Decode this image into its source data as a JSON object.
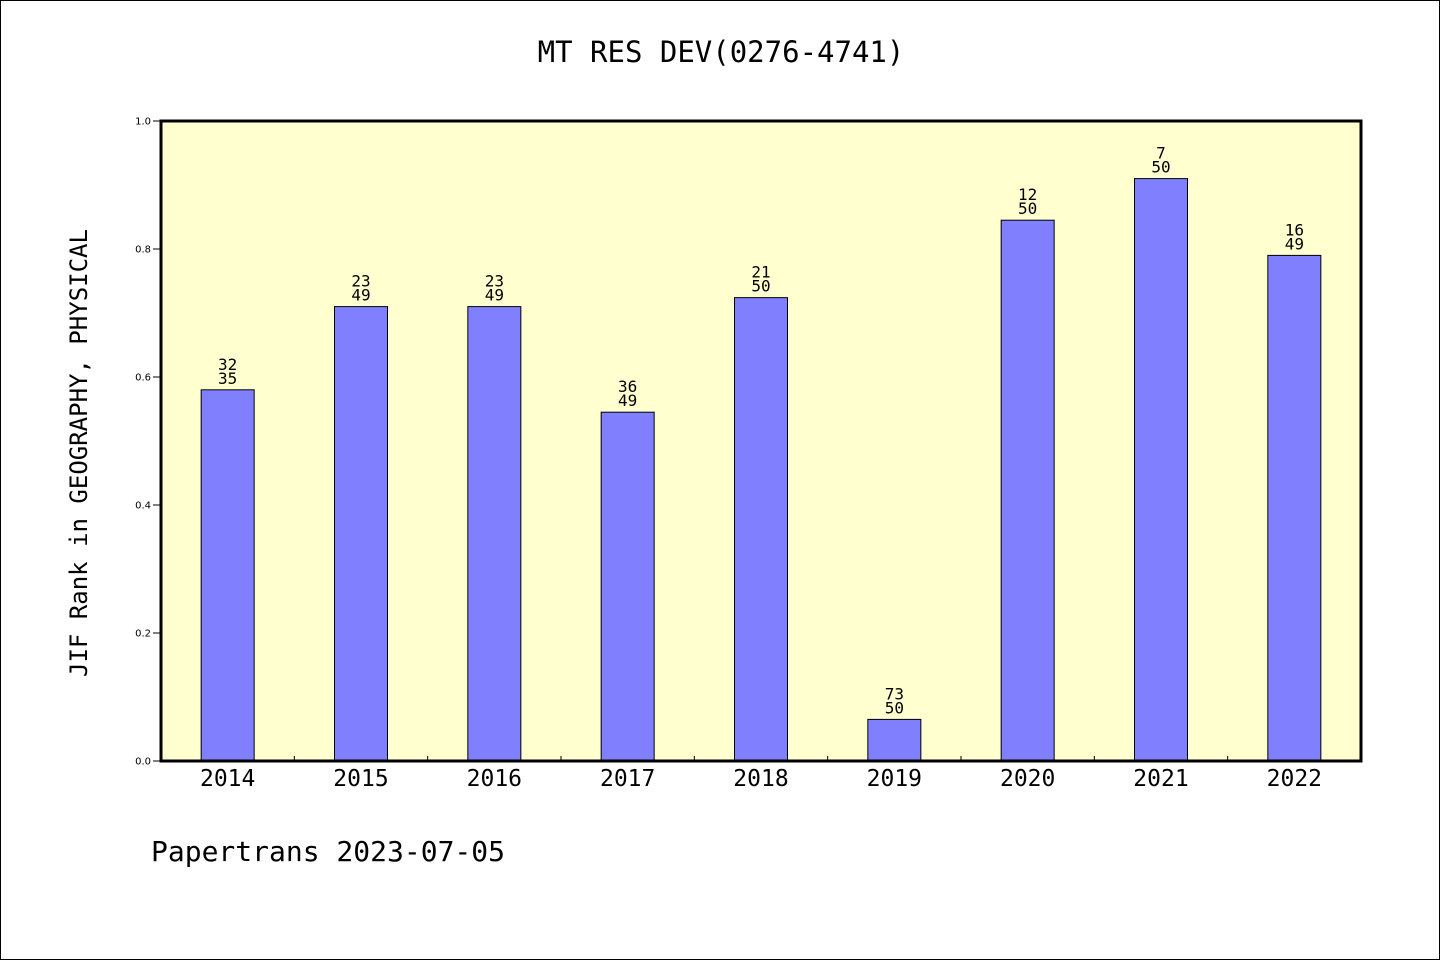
{
  "chart_data": {
    "type": "bar",
    "title": "MT RES DEV(0276-4741)",
    "ylabel": "JIF Rank in GEOGRAPHY, PHYSICAL",
    "xlabel": "",
    "ylim": [
      0,
      1.0
    ],
    "yticks": [
      "0.0",
      "0.2",
      "0.4",
      "0.6",
      "0.8",
      "1.0"
    ],
    "categories": [
      "2014",
      "2015",
      "2016",
      "2017",
      "2018",
      "2019",
      "2020",
      "2021",
      "2022"
    ],
    "values": [
      0.58,
      0.71,
      0.71,
      0.545,
      0.724,
      0.065,
      0.845,
      0.91,
      0.79
    ],
    "rank_labels": [
      {
        "top": "32",
        "bottom": "35"
      },
      {
        "top": "23",
        "bottom": "49"
      },
      {
        "top": "23",
        "bottom": "49"
      },
      {
        "top": "36",
        "bottom": "49"
      },
      {
        "top": "21",
        "bottom": "50"
      },
      {
        "top": "73",
        "bottom": "50"
      },
      {
        "top": "12",
        "bottom": "50"
      },
      {
        "top": "7",
        "bottom": "50"
      },
      {
        "top": "16",
        "bottom": "49"
      }
    ],
    "grid": false,
    "colors": {
      "bar": "#8080ff",
      "plot_background": "#ffffd0",
      "axis": "#000000"
    }
  },
  "footer": "Papertrans 2023-07-05"
}
